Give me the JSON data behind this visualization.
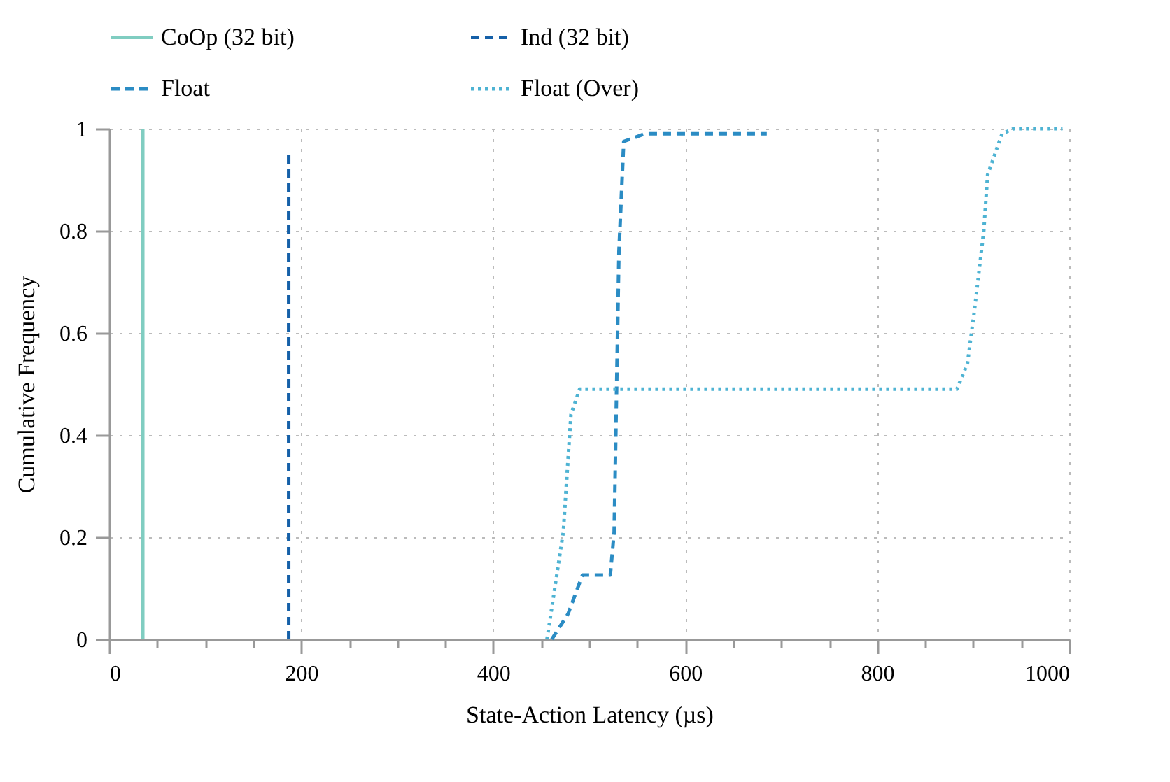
{
  "chart_data": {
    "type": "line",
    "xlabel": "State-Action Latency (µs)",
    "ylabel": "Cumulative Frequency",
    "xlim": [
      0,
      1000
    ],
    "ylim": [
      0,
      1
    ],
    "xticks": [
      0,
      {
        "value": 50,
        "label": null
      },
      {
        "value": 100,
        "label": null
      },
      {
        "value": 150,
        "label": null
      },
      200,
      {
        "value": 250,
        "label": null
      },
      {
        "value": 300,
        "label": null
      },
      {
        "value": 350,
        "label": null
      },
      400,
      {
        "value": 450,
        "label": null
      },
      {
        "value": 500,
        "label": null
      },
      {
        "value": 550,
        "label": null
      },
      600,
      {
        "value": 650,
        "label": null
      },
      {
        "value": 700,
        "label": null
      },
      {
        "value": 750,
        "label": null
      },
      800,
      {
        "value": 850,
        "label": null
      },
      {
        "value": 900,
        "label": null
      },
      {
        "value": 950,
        "label": null
      },
      1000
    ],
    "yticks": [
      0,
      0.2,
      0.4,
      0.6,
      0.8,
      1
    ],
    "grid": true,
    "legend": "top",
    "marker": "none",
    "series": [
      {
        "name": "CoOp (32 bit)",
        "color": "#80cdc1",
        "line_style": "solid",
        "x": [
          35,
          35
        ],
        "values": [
          0,
          1
        ]
      },
      {
        "name": "Ind (32 bit)",
        "color": "#1560a8",
        "line_style": "dashed",
        "x": [
          187,
          187
        ],
        "values": [
          0,
          0.95
        ]
      },
      {
        "name": "Float",
        "color": "#2b8cc4",
        "line_style": "dashed",
        "x": [
          461,
          478,
          493,
          522,
          526,
          531,
          536,
          558,
          685
        ],
        "values": [
          0,
          0.05,
          0.126,
          0.126,
          0.21,
          0.76,
          0.975,
          0.99,
          0.99
        ]
      },
      {
        "name": "Float (Over)",
        "color": "#4eb3d3",
        "line_style": "dotted",
        "x": [
          456,
          473,
          481,
          490,
          883,
          894,
          901,
          911,
          915,
          930,
          942,
          993
        ],
        "values": [
          0,
          0.21,
          0.44,
          0.49,
          0.49,
          0.54,
          0.64,
          0.8,
          0.91,
          0.99,
          1,
          1
        ]
      }
    ]
  }
}
